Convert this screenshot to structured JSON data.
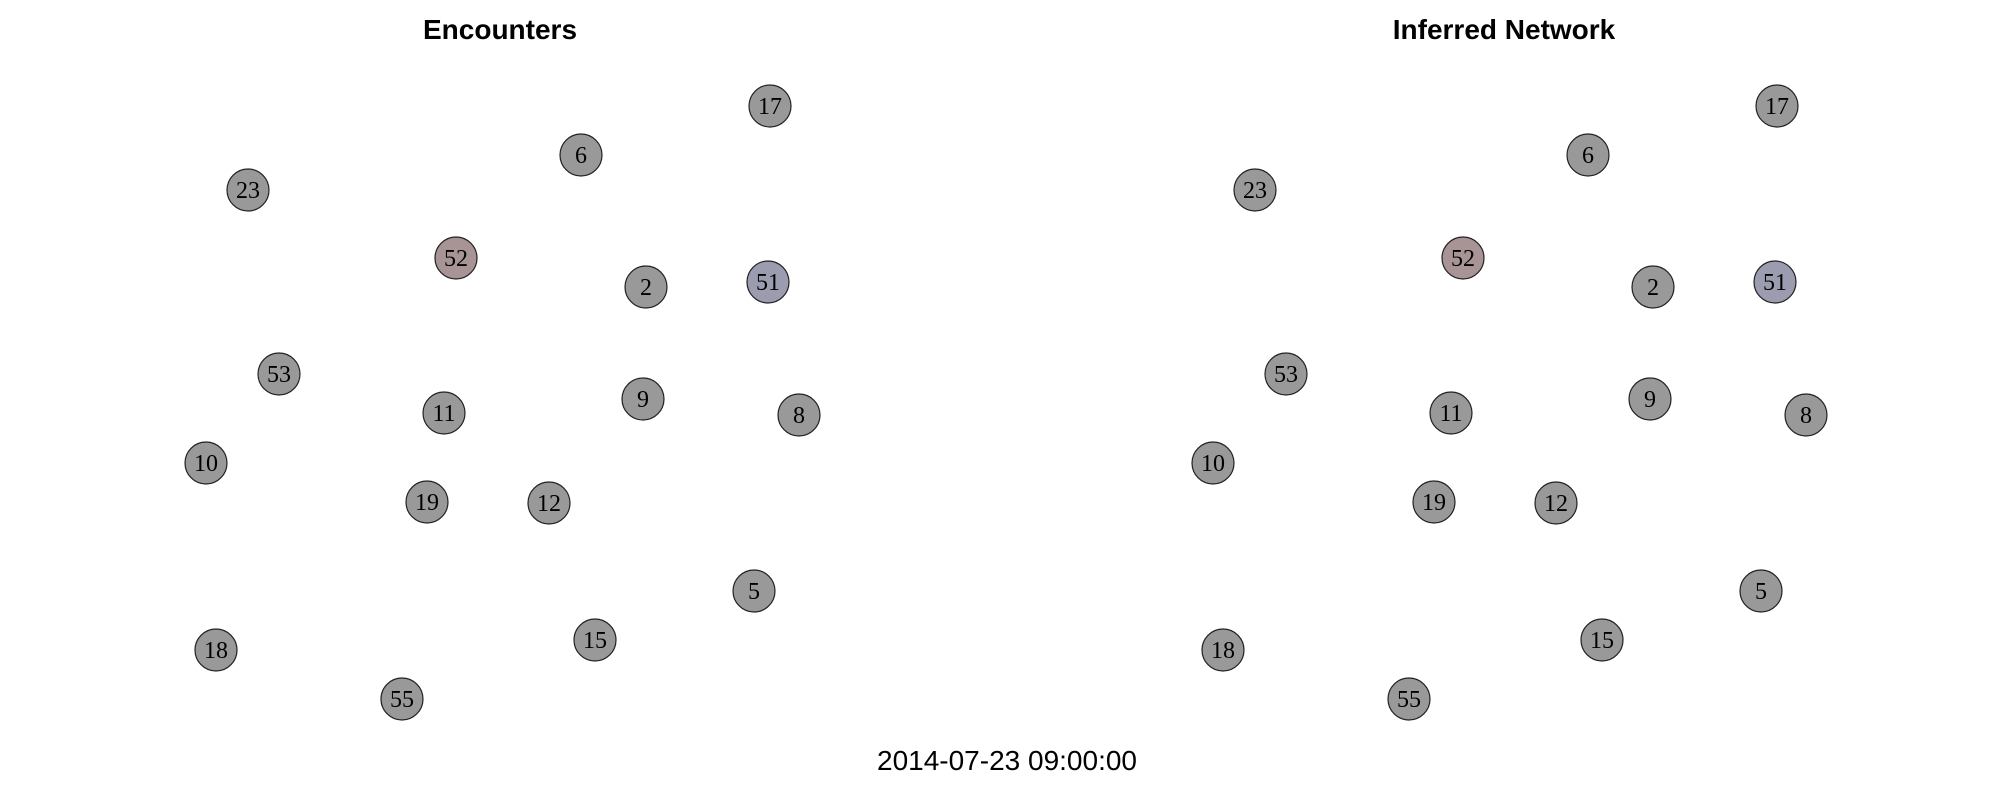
{
  "panels": [
    {
      "title": "Encounters"
    },
    {
      "title": "Inferred Network"
    }
  ],
  "timestamp": "2014-07-23 09:00:00",
  "node_colors": {
    "default": "#999999",
    "52": "#a89494",
    "51": "#9c9cb0"
  },
  "nodes": [
    {
      "id": "17"
    },
    {
      "id": "6"
    },
    {
      "id": "23"
    },
    {
      "id": "52"
    },
    {
      "id": "2"
    },
    {
      "id": "51"
    },
    {
      "id": "53"
    },
    {
      "id": "11"
    },
    {
      "id": "9"
    },
    {
      "id": "8"
    },
    {
      "id": "10"
    },
    {
      "id": "19"
    },
    {
      "id": "12"
    },
    {
      "id": "5"
    },
    {
      "id": "18"
    },
    {
      "id": "15"
    },
    {
      "id": "55"
    }
  ]
}
